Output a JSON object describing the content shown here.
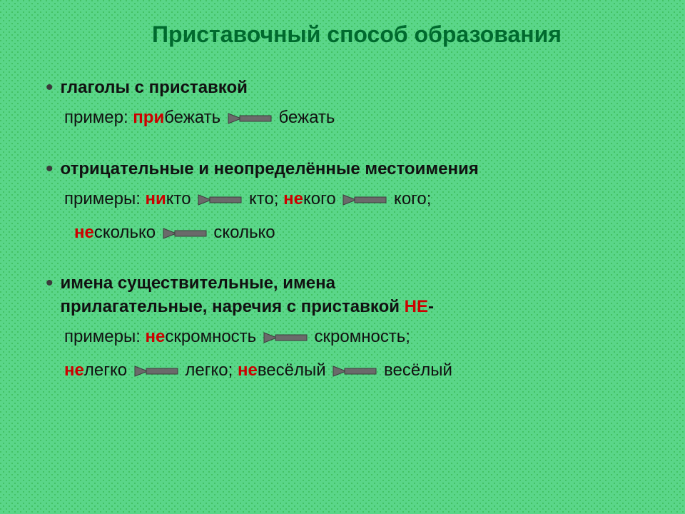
{
  "colors": {
    "background": "#5ad689",
    "dot_pattern": "rgba(0,140,0,0.35)",
    "title": "#006a2e",
    "text": "#111111",
    "highlight": "#cc0000",
    "arrow_fill": "#6a6a6a",
    "arrow_stroke": "#3d3d3d"
  },
  "typography": {
    "title_fontsize": 32,
    "title_weight": "bold",
    "body_fontsize": 24,
    "font_family": "Arial, sans-serif"
  },
  "arrow_svg": {
    "width": 64,
    "height": 20
  },
  "title": "Приставочный способ образования",
  "sections": [
    {
      "heading": "глаголы с приставкой",
      "lines": [
        {
          "label": "пример: ",
          "parts": [
            {
              "hi": "при",
              "rest": "бежать"
            },
            {
              "arrow": true
            },
            {
              "rest": "бежать"
            }
          ]
        }
      ]
    },
    {
      "heading": "отрицательные и неопределённые местоимения",
      "lines": [
        {
          "label": "примеры: ",
          "parts": [
            {
              "hi": "ни",
              "rest": "кто"
            },
            {
              "arrow": true
            },
            {
              "rest": "кто; "
            },
            {
              "hi": "не",
              "rest": "кого"
            },
            {
              "arrow": true
            },
            {
              "rest": "кого;"
            }
          ]
        },
        {
          "label": "",
          "indent": true,
          "parts": [
            {
              "hi": "не",
              "rest": "сколько"
            },
            {
              "arrow": true
            },
            {
              "rest": "сколько"
            }
          ]
        }
      ]
    },
    {
      "heading_parts": [
        "имена существительные, имена",
        "прилагательные, наречия с приставкой "
      ],
      "heading_tail_hi": "НЕ",
      "heading_tail_rest": "-",
      "lines": [
        {
          "label": "примеры: ",
          "parts": [
            {
              "hi": "не",
              "rest": "скромность"
            },
            {
              "arrow": true
            },
            {
              "rest": "скромность;"
            }
          ]
        },
        {
          "label": "",
          "parts": [
            {
              "hi": "не",
              "rest": "легко"
            },
            {
              "arrow": true
            },
            {
              "rest": "легко; "
            },
            {
              "hi": "не",
              "rest": "весёлый"
            },
            {
              "arrow": true
            },
            {
              "rest": "весёлый"
            }
          ]
        }
      ]
    }
  ]
}
